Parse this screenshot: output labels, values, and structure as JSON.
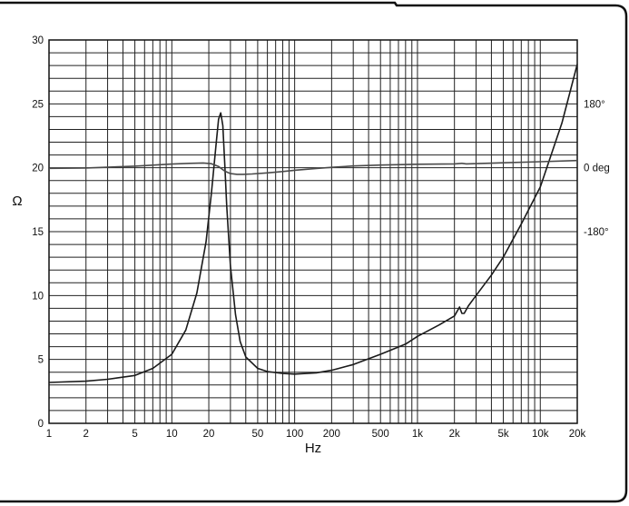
{
  "chart_data": {
    "type": "line",
    "xlabel": "Hz",
    "ylabel": "Ω",
    "x_scale": "log",
    "xlim": [
      1,
      20000
    ],
    "ylim": [
      0,
      30
    ],
    "grid": true,
    "x_ticks": [
      {
        "value": 1,
        "label": "1"
      },
      {
        "value": 2,
        "label": "2"
      },
      {
        "value": 5,
        "label": "5"
      },
      {
        "value": 10,
        "label": "10"
      },
      {
        "value": 20,
        "label": "20"
      },
      {
        "value": 50,
        "label": "50"
      },
      {
        "value": 100,
        "label": "100"
      },
      {
        "value": 200,
        "label": "200"
      },
      {
        "value": 500,
        "label": "500"
      },
      {
        "value": 1000,
        "label": "1k"
      },
      {
        "value": 2000,
        "label": "2k"
      },
      {
        "value": 5000,
        "label": "5k"
      },
      {
        "value": 10000,
        "label": "10k"
      },
      {
        "value": 20000,
        "label": "20k"
      }
    ],
    "y_ticks": [
      {
        "value": 0,
        "label": "0"
      },
      {
        "value": 5,
        "label": "5"
      },
      {
        "value": 10,
        "label": "10"
      },
      {
        "value": 15,
        "label": "15"
      },
      {
        "value": 20,
        "label": "20"
      },
      {
        "value": 25,
        "label": "25"
      },
      {
        "value": 30,
        "label": "30"
      }
    ],
    "y2_ticks": [
      {
        "value": 180,
        "label": "180°"
      },
      {
        "value": 0,
        "label": "0 deg"
      },
      {
        "value": -180,
        "label": "-180°"
      }
    ],
    "y2lim": [
      -180,
      180
    ],
    "series": [
      {
        "role": "impedance",
        "axis": "left",
        "color": "#1a1a1a",
        "x": [
          1,
          2,
          3,
          5,
          7,
          10,
          13,
          16,
          19,
          21,
          23,
          24,
          25,
          26,
          27,
          28,
          30,
          33,
          36,
          40,
          50,
          60,
          80,
          100,
          150,
          200,
          300,
          500,
          800,
          1000,
          1500,
          2000,
          2200,
          2300,
          2400,
          2600,
          3000,
          4000,
          5000,
          7000,
          10000,
          15000,
          20000
        ],
        "values": [
          3.2,
          3.3,
          3.45,
          3.75,
          4.3,
          5.4,
          7.3,
          10.2,
          14.2,
          18.0,
          22.0,
          23.8,
          24.3,
          23.3,
          20.2,
          17.0,
          12.3,
          8.5,
          6.4,
          5.2,
          4.3,
          4.05,
          3.9,
          3.85,
          3.95,
          4.15,
          4.6,
          5.4,
          6.2,
          6.8,
          7.7,
          8.4,
          9.1,
          8.6,
          8.6,
          9.2,
          10.0,
          11.6,
          13.0,
          15.6,
          18.5,
          23.5,
          28.1
        ]
      },
      {
        "role": "phase",
        "axis": "right",
        "color": "#4a4a4a",
        "x": [
          1,
          2,
          5,
          10,
          14,
          18,
          21,
          24,
          27,
          30,
          34,
          38,
          45,
          60,
          80,
          100,
          150,
          200,
          300,
          500,
          1000,
          2000,
          2300,
          2500,
          5000,
          10000,
          20000
        ],
        "values": [
          -1.5,
          -0.5,
          4.5,
          10.5,
          12.5,
          13.5,
          11.5,
          3.5,
          -9.5,
          -16.5,
          -18.5,
          -18.5,
          -17.5,
          -14.5,
          -10.5,
          -7.0,
          -2.0,
          1.2,
          5.0,
          7.6,
          9.8,
          10.8,
          12.5,
          10.8,
          14.0,
          17.0,
          20.5
        ]
      }
    ]
  }
}
